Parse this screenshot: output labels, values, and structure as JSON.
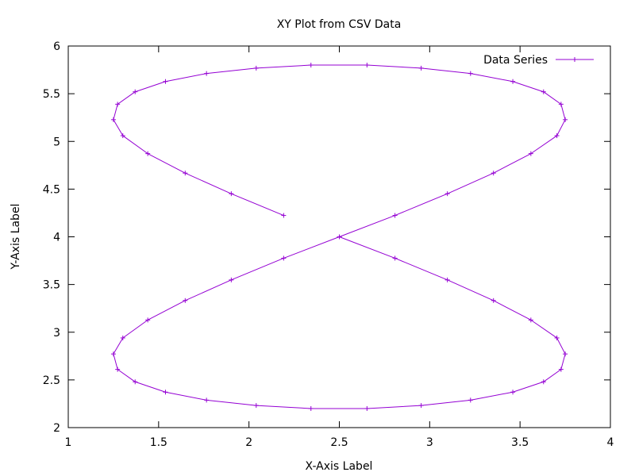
{
  "chart_data": {
    "type": "line",
    "title": "XY Plot from CSV Data",
    "xlabel": "X-Axis Label",
    "ylabel": "Y-Axis Label",
    "xlim": [
      1,
      4
    ],
    "ylim": [
      2,
      6
    ],
    "xticks": [
      "1",
      "1.5",
      "2",
      "2.5",
      "3",
      "3.5",
      "4"
    ],
    "yticks": [
      "2",
      "2.5",
      "3",
      "3.5",
      "4",
      "4.5",
      "5",
      "5.5",
      "6"
    ],
    "grid": false,
    "legend_position": "top-right",
    "series": [
      {
        "name": "Data Series",
        "color": "#9400d3",
        "marker": "plus",
        "x": [
          2.5,
          2.808,
          3.098,
          3.353,
          3.56,
          3.704,
          3.75,
          3.727,
          3.63,
          3.46,
          3.226,
          2.953,
          2.653,
          2.343,
          2.04,
          1.765,
          1.538,
          1.37,
          1.273,
          1.25,
          1.302,
          1.44,
          1.647,
          1.902,
          2.192,
          2.5,
          2.808,
          3.098,
          3.353,
          3.56,
          3.704,
          3.75,
          3.727,
          3.63,
          3.46,
          3.226,
          2.953,
          2.653,
          2.343,
          2.04,
          1.765,
          1.538,
          1.37,
          1.273,
          1.25,
          1.302,
          1.44,
          1.647,
          1.902,
          2.192
        ],
        "y": [
          4.0,
          3.776,
          3.548,
          3.332,
          3.128,
          2.94,
          2.772,
          2.61,
          2.48,
          2.372,
          2.288,
          2.232,
          2.2,
          2.2,
          2.232,
          2.288,
          2.372,
          2.48,
          2.61,
          2.772,
          2.94,
          3.128,
          3.332,
          3.548,
          3.776,
          4.0,
          4.224,
          4.452,
          4.668,
          4.872,
          5.06,
          5.228,
          5.39,
          5.52,
          5.628,
          5.712,
          5.768,
          5.8,
          5.8,
          5.768,
          5.712,
          5.628,
          5.52,
          5.39,
          5.228,
          5.06,
          4.872,
          4.668,
          4.452,
          4.224
        ]
      }
    ]
  }
}
